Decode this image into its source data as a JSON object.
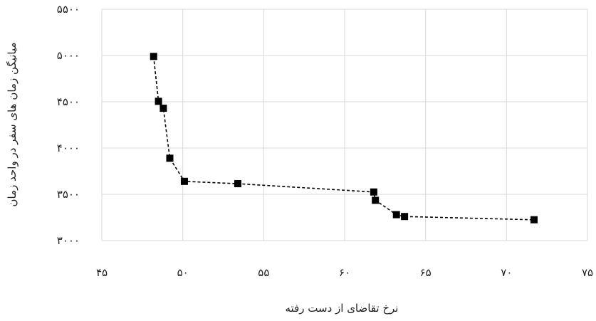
{
  "chart_data": {
    "type": "scatter",
    "title": "",
    "xlabel": "نرخ تقاضای از دست رفته",
    "ylabel": "میانیگن زمان های سفر در واحد زمان",
    "xlim": [
      45,
      75
    ],
    "ylim": [
      3000,
      5500
    ],
    "x_ticks": [
      45,
      50,
      55,
      60,
      65,
      70,
      75
    ],
    "y_ticks": [
      3000,
      3500,
      4000,
      4500,
      5000,
      5500
    ],
    "x_tick_labels": [
      "۴۵",
      "۵۰",
      "۵۵",
      "۶۰",
      "۶۵",
      "۷۰",
      "۷۵"
    ],
    "y_tick_labels": [
      "۳۰۰۰",
      "۳۵۰۰",
      "۴۰۰۰",
      "۴۵۰۰",
      "۵۰۰۰",
      "۵۵۰۰"
    ],
    "grid": true,
    "line_style": "dashed",
    "marker": "square",
    "series": [
      {
        "points": [
          {
            "x": 48.2,
            "y": 4990
          },
          {
            "x": 48.5,
            "y": 4505
          },
          {
            "x": 48.8,
            "y": 4430
          },
          {
            "x": 49.2,
            "y": 3890
          },
          {
            "x": 50.1,
            "y": 3640
          },
          {
            "x": 53.4,
            "y": 3615
          },
          {
            "x": 61.8,
            "y": 3525
          },
          {
            "x": 61.9,
            "y": 3435
          },
          {
            "x": 63.2,
            "y": 3280
          },
          {
            "x": 63.7,
            "y": 3260
          },
          {
            "x": 71.7,
            "y": 3225
          }
        ]
      }
    ]
  }
}
